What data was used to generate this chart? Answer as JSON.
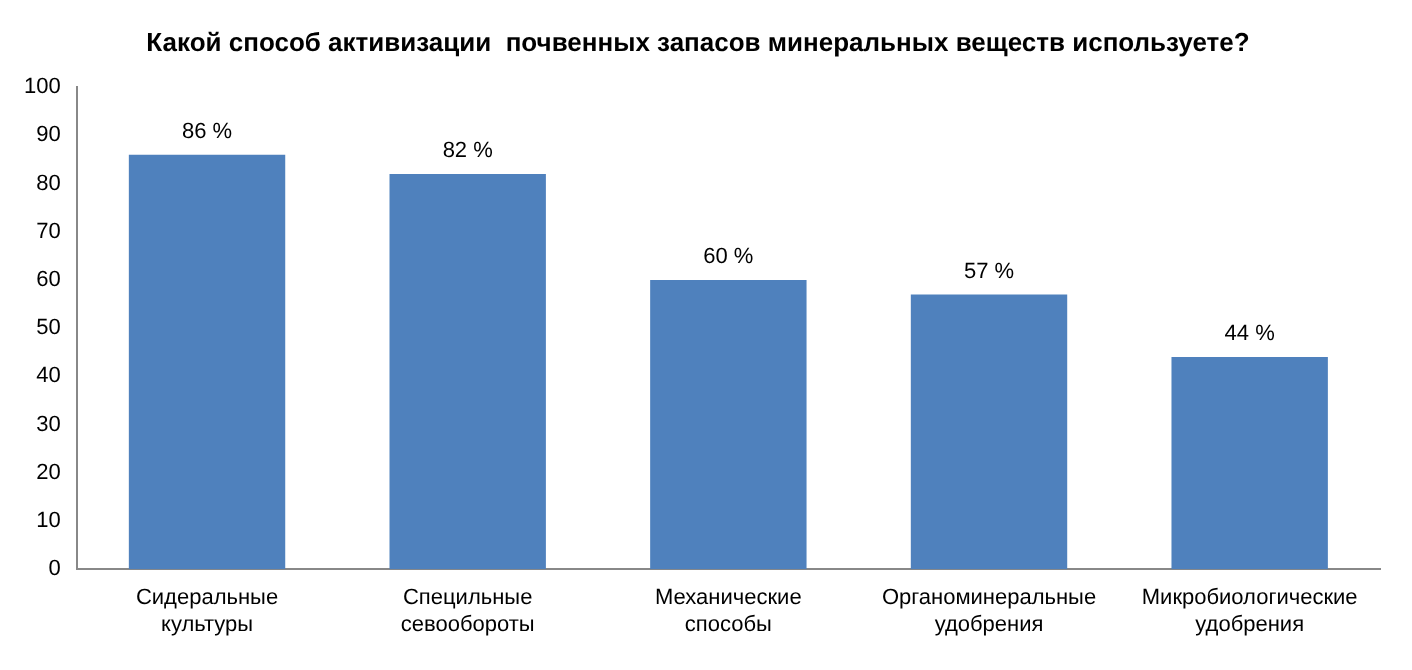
{
  "chart_data": {
    "type": "bar",
    "title": "Какой способ активизации  почвенных запасов минеральных веществ используете?",
    "categories": [
      "Сидеральные культуры",
      "Специльные севообороты",
      "Механические способы",
      "Органоминеральные удобрения",
      "Микробиологические удобрения"
    ],
    "values": [
      86,
      82,
      60,
      57,
      44
    ],
    "color": "#4f81bd",
    "value_labels": [
      "86 %",
      "82 %",
      "60 %",
      "57 %",
      "44 %"
    ],
    "ylim": [
      0,
      100
    ],
    "yticks": [
      0,
      10,
      20,
      30,
      40,
      50,
      60,
      70,
      80,
      90,
      100
    ],
    "grid": false,
    "legend": false
  }
}
